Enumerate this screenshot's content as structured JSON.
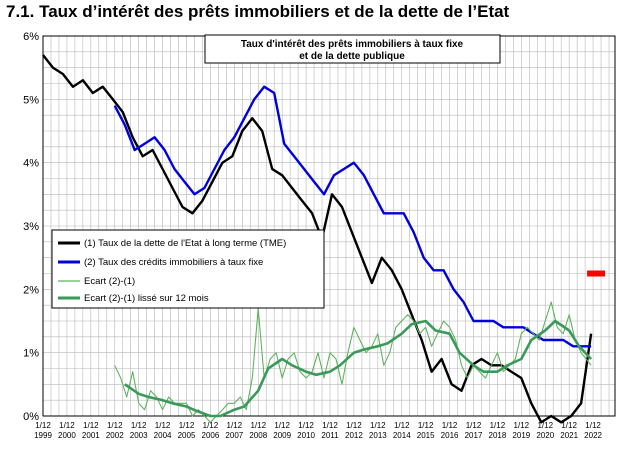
{
  "page_title": "7.1. Taux d’intérêt des prêts immobiliers et de la dette de l’Etat",
  "chart_data": {
    "type": "line",
    "title": "7.1. Taux d’intérêt des prêts immobiliers et de la dette de l’Etat",
    "subtitle_lines": [
      "Taux d'intérêt des prêts immobiliers  à taux fixe",
      "et de la dette publique"
    ],
    "xlabel": "",
    "ylabel": "",
    "x_axis_type": "date",
    "xlim": [
      "1999-01",
      "2022-12"
    ],
    "ylim": [
      0,
      6
    ],
    "y_ticks": [
      0,
      1,
      2,
      3,
      4,
      5,
      6
    ],
    "y_tick_labels": [
      "0%",
      "1%",
      "2%",
      "3%",
      "4%",
      "5%",
      "6%"
    ],
    "x_tick_top": "1/12",
    "x_tick_years": [
      "1999",
      "2000",
      "2001",
      "2002",
      "2003",
      "2004",
      "2005",
      "2006",
      "2007",
      "2008",
      "2009",
      "2010",
      "2011",
      "2012",
      "2013",
      "2014",
      "2015",
      "2016",
      "2017",
      "2018",
      "2019",
      "2020",
      "2021",
      "2022"
    ],
    "grid": true,
    "legend_position": "middle-left",
    "series": [
      {
        "name": "(1) Taux de la dette de l'Etat à long terme (TME)",
        "color": "#000000",
        "x": [
          "1999-01",
          "1999-06",
          "1999-11",
          "2000-04",
          "2000-09",
          "2001-02",
          "2001-07",
          "2001-12",
          "2002-05",
          "2002-10",
          "2003-03",
          "2003-08",
          "2004-01",
          "2004-06",
          "2004-11",
          "2005-04",
          "2005-09",
          "2006-02",
          "2006-07",
          "2006-12",
          "2007-05",
          "2007-10",
          "2008-03",
          "2008-08",
          "2009-01",
          "2009-06",
          "2009-11",
          "2010-04",
          "2010-09",
          "2011-02",
          "2011-07",
          "2011-12",
          "2012-05",
          "2012-10",
          "2013-03",
          "2013-08",
          "2014-01",
          "2014-06",
          "2014-11",
          "2015-04",
          "2015-09",
          "2016-02",
          "2016-07",
          "2016-12",
          "2017-05",
          "2017-10",
          "2018-03",
          "2018-08",
          "2019-01",
          "2019-06",
          "2019-11",
          "2020-04",
          "2020-09",
          "2021-02",
          "2021-07",
          "2021-12"
        ],
        "values": [
          5.7,
          5.5,
          5.4,
          5.2,
          5.3,
          5.1,
          5.2,
          5.0,
          4.8,
          4.4,
          4.1,
          4.2,
          3.9,
          3.6,
          3.3,
          3.2,
          3.4,
          3.7,
          4.0,
          4.1,
          4.5,
          4.7,
          4.5,
          3.9,
          3.8,
          3.6,
          3.4,
          3.2,
          2.8,
          3.5,
          3.3,
          2.9,
          2.5,
          2.1,
          2.5,
          2.3,
          2.0,
          1.6,
          1.2,
          0.7,
          0.9,
          0.5,
          0.4,
          0.8,
          0.9,
          0.8,
          0.8,
          0.7,
          0.6,
          0.2,
          -0.1,
          0.0,
          -0.1,
          0.0,
          0.2,
          1.3
        ]
      },
      {
        "name": "(2) Taux des crédits immobiliers à taux fixe",
        "color": "#0000dd",
        "x": [
          "2002-01",
          "2002-06",
          "2002-11",
          "2003-04",
          "2003-09",
          "2004-02",
          "2004-07",
          "2004-12",
          "2005-05",
          "2005-10",
          "2006-03",
          "2006-08",
          "2007-01",
          "2007-06",
          "2007-11",
          "2008-04",
          "2008-09",
          "2009-02",
          "2009-07",
          "2009-12",
          "2010-05",
          "2010-10",
          "2011-03",
          "2011-08",
          "2012-01",
          "2012-06",
          "2012-11",
          "2013-04",
          "2013-09",
          "2014-02",
          "2014-07",
          "2014-12",
          "2015-05",
          "2015-10",
          "2016-03",
          "2016-08",
          "2017-01",
          "2017-06",
          "2017-11",
          "2018-04",
          "2018-09",
          "2019-02",
          "2019-07",
          "2019-12",
          "2020-05",
          "2020-10",
          "2021-03",
          "2021-08",
          "2021-12"
        ],
        "values": [
          4.9,
          4.6,
          4.2,
          4.3,
          4.4,
          4.2,
          3.9,
          3.7,
          3.5,
          3.6,
          3.9,
          4.2,
          4.4,
          4.7,
          5.0,
          5.2,
          5.1,
          4.3,
          4.1,
          3.9,
          3.7,
          3.5,
          3.8,
          3.9,
          4.0,
          3.8,
          3.5,
          3.2,
          3.2,
          3.2,
          2.9,
          2.5,
          2.3,
          2.3,
          2.0,
          1.8,
          1.5,
          1.5,
          1.5,
          1.4,
          1.4,
          1.4,
          1.3,
          1.2,
          1.2,
          1.2,
          1.1,
          1.1,
          1.1
        ]
      },
      {
        "name": "Ecart (2)-(1)",
        "color": "#5fb45f",
        "x": [
          "2002-01",
          "2002-04",
          "2002-07",
          "2002-10",
          "2003-01",
          "2003-04",
          "2003-07",
          "2003-10",
          "2004-01",
          "2004-04",
          "2004-07",
          "2004-10",
          "2005-01",
          "2005-04",
          "2005-07",
          "2005-10",
          "2006-01",
          "2006-04",
          "2006-07",
          "2006-10",
          "2007-01",
          "2007-04",
          "2007-07",
          "2007-10",
          "2008-01",
          "2008-04",
          "2008-07",
          "2008-10",
          "2009-01",
          "2009-04",
          "2009-07",
          "2009-10",
          "2010-01",
          "2010-04",
          "2010-07",
          "2010-10",
          "2011-01",
          "2011-04",
          "2011-07",
          "2011-10",
          "2012-01",
          "2012-04",
          "2012-07",
          "2012-10",
          "2013-01",
          "2013-04",
          "2013-07",
          "2013-10",
          "2014-01",
          "2014-04",
          "2014-07",
          "2014-10",
          "2015-01",
          "2015-04",
          "2015-07",
          "2015-10",
          "2016-01",
          "2016-04",
          "2016-07",
          "2016-10",
          "2017-01",
          "2017-04",
          "2017-07",
          "2017-10",
          "2018-01",
          "2018-04",
          "2018-07",
          "2018-10",
          "2019-01",
          "2019-04",
          "2019-07",
          "2019-10",
          "2020-01",
          "2020-04",
          "2020-07",
          "2020-10",
          "2021-01",
          "2021-04",
          "2021-07",
          "2021-12"
        ],
        "values": [
          0.8,
          0.6,
          0.3,
          0.7,
          0.2,
          0.1,
          0.4,
          0.3,
          0.1,
          0.3,
          0.2,
          0.2,
          0.2,
          0.0,
          0.1,
          0.0,
          -0.1,
          0.0,
          0.1,
          0.2,
          0.2,
          0.3,
          0.1,
          0.6,
          1.7,
          0.6,
          0.9,
          1.0,
          0.6,
          0.9,
          1.0,
          0.7,
          0.6,
          0.7,
          1.0,
          0.6,
          1.0,
          0.9,
          0.5,
          1.0,
          1.4,
          1.2,
          1.0,
          1.1,
          1.3,
          0.8,
          1.0,
          1.4,
          1.5,
          1.6,
          1.5,
          1.3,
          1.4,
          1.1,
          1.3,
          1.5,
          1.4,
          1.2,
          0.8,
          0.6,
          0.8,
          0.7,
          0.6,
          0.8,
          1.0,
          0.7,
          0.8,
          0.9,
          1.3,
          1.4,
          1.3,
          1.2,
          1.5,
          1.8,
          1.4,
          1.3,
          1.6,
          1.2,
          1.0,
          0.8
        ]
      },
      {
        "name": "Ecart (2)-(1) lissé sur 12 mois",
        "color": "#3a9a5a",
        "x": [
          "2002-06",
          "2003-01",
          "2003-06",
          "2004-01",
          "2004-06",
          "2005-01",
          "2005-06",
          "2006-01",
          "2006-06",
          "2007-01",
          "2007-06",
          "2008-01",
          "2008-06",
          "2009-01",
          "2009-06",
          "2010-01",
          "2010-06",
          "2011-01",
          "2011-06",
          "2012-01",
          "2012-06",
          "2013-01",
          "2013-06",
          "2014-01",
          "2014-06",
          "2015-01",
          "2015-06",
          "2016-01",
          "2016-06",
          "2017-01",
          "2017-06",
          "2018-01",
          "2018-06",
          "2019-01",
          "2019-06",
          "2020-01",
          "2020-06",
          "2021-01",
          "2021-06",
          "2021-12"
        ],
        "values": [
          0.5,
          0.35,
          0.3,
          0.25,
          0.2,
          0.15,
          0.08,
          0.0,
          0.0,
          0.1,
          0.15,
          0.4,
          0.75,
          0.9,
          0.8,
          0.7,
          0.65,
          0.7,
          0.8,
          1.0,
          1.05,
          1.1,
          1.15,
          1.3,
          1.45,
          1.5,
          1.35,
          1.3,
          1.0,
          0.8,
          0.7,
          0.7,
          0.8,
          0.9,
          1.2,
          1.35,
          1.5,
          1.35,
          1.1,
          0.9
        ]
      }
    ],
    "markers": [
      {
        "x": "2022-01",
        "y": 2.25,
        "color": "#ff0000"
      }
    ]
  }
}
